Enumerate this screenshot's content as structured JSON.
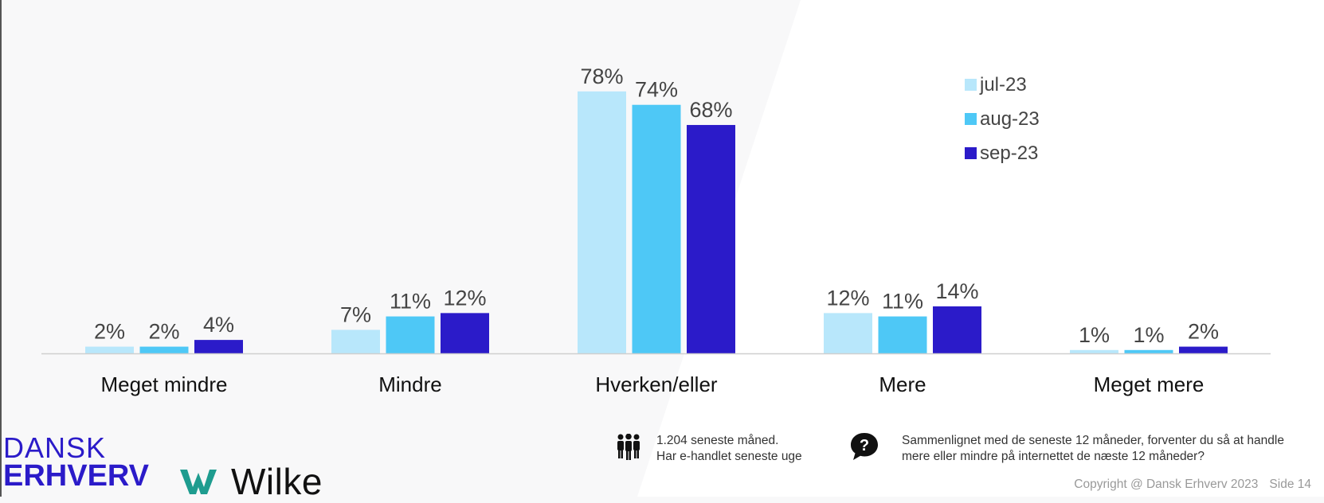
{
  "chart_data": {
    "type": "bar",
    "categories": [
      "Meget mindre",
      "Mindre",
      "Hverken/eller",
      "Mere",
      "Meget mere"
    ],
    "series": [
      {
        "name": "jul-23",
        "color": "#b8e7fb",
        "values": [
          2,
          7,
          78,
          12,
          1
        ],
        "labels": [
          "2%",
          "7%",
          "78%",
          "12%",
          "1%"
        ]
      },
      {
        "name": "aug-23",
        "color": "#4ec8f6",
        "values": [
          2,
          11,
          74,
          11,
          1
        ],
        "labels": [
          "2%",
          "11%",
          "74%",
          "11%",
          "1%"
        ]
      },
      {
        "name": "sep-23",
        "color": "#2b1bc9",
        "values": [
          4,
          12,
          68,
          14,
          2
        ],
        "labels": [
          "4%",
          "12%",
          "68%",
          "14%",
          "2%"
        ]
      }
    ],
    "ylim": [
      0,
      80
    ],
    "grid": false,
    "legend_position": "top-right"
  },
  "logos": {
    "dansk_line1": "DANSK",
    "dansk_line2": "ERHVERV",
    "wilke": "Wilke"
  },
  "footer": {
    "respondents_line1": "1.204 seneste måned.",
    "respondents_line2": "Har e-handlet seneste uge",
    "question_line1": "Sammenlignet med de seneste 12 måneder, forventer du så at handle",
    "question_line2": "mere eller mindre på internettet de næste 12 måneder?",
    "copyright": "Copyright @ Dansk Erhverv 2023",
    "page": "Side  14"
  },
  "icons": [
    "people-icon",
    "question-bubble-icon"
  ]
}
